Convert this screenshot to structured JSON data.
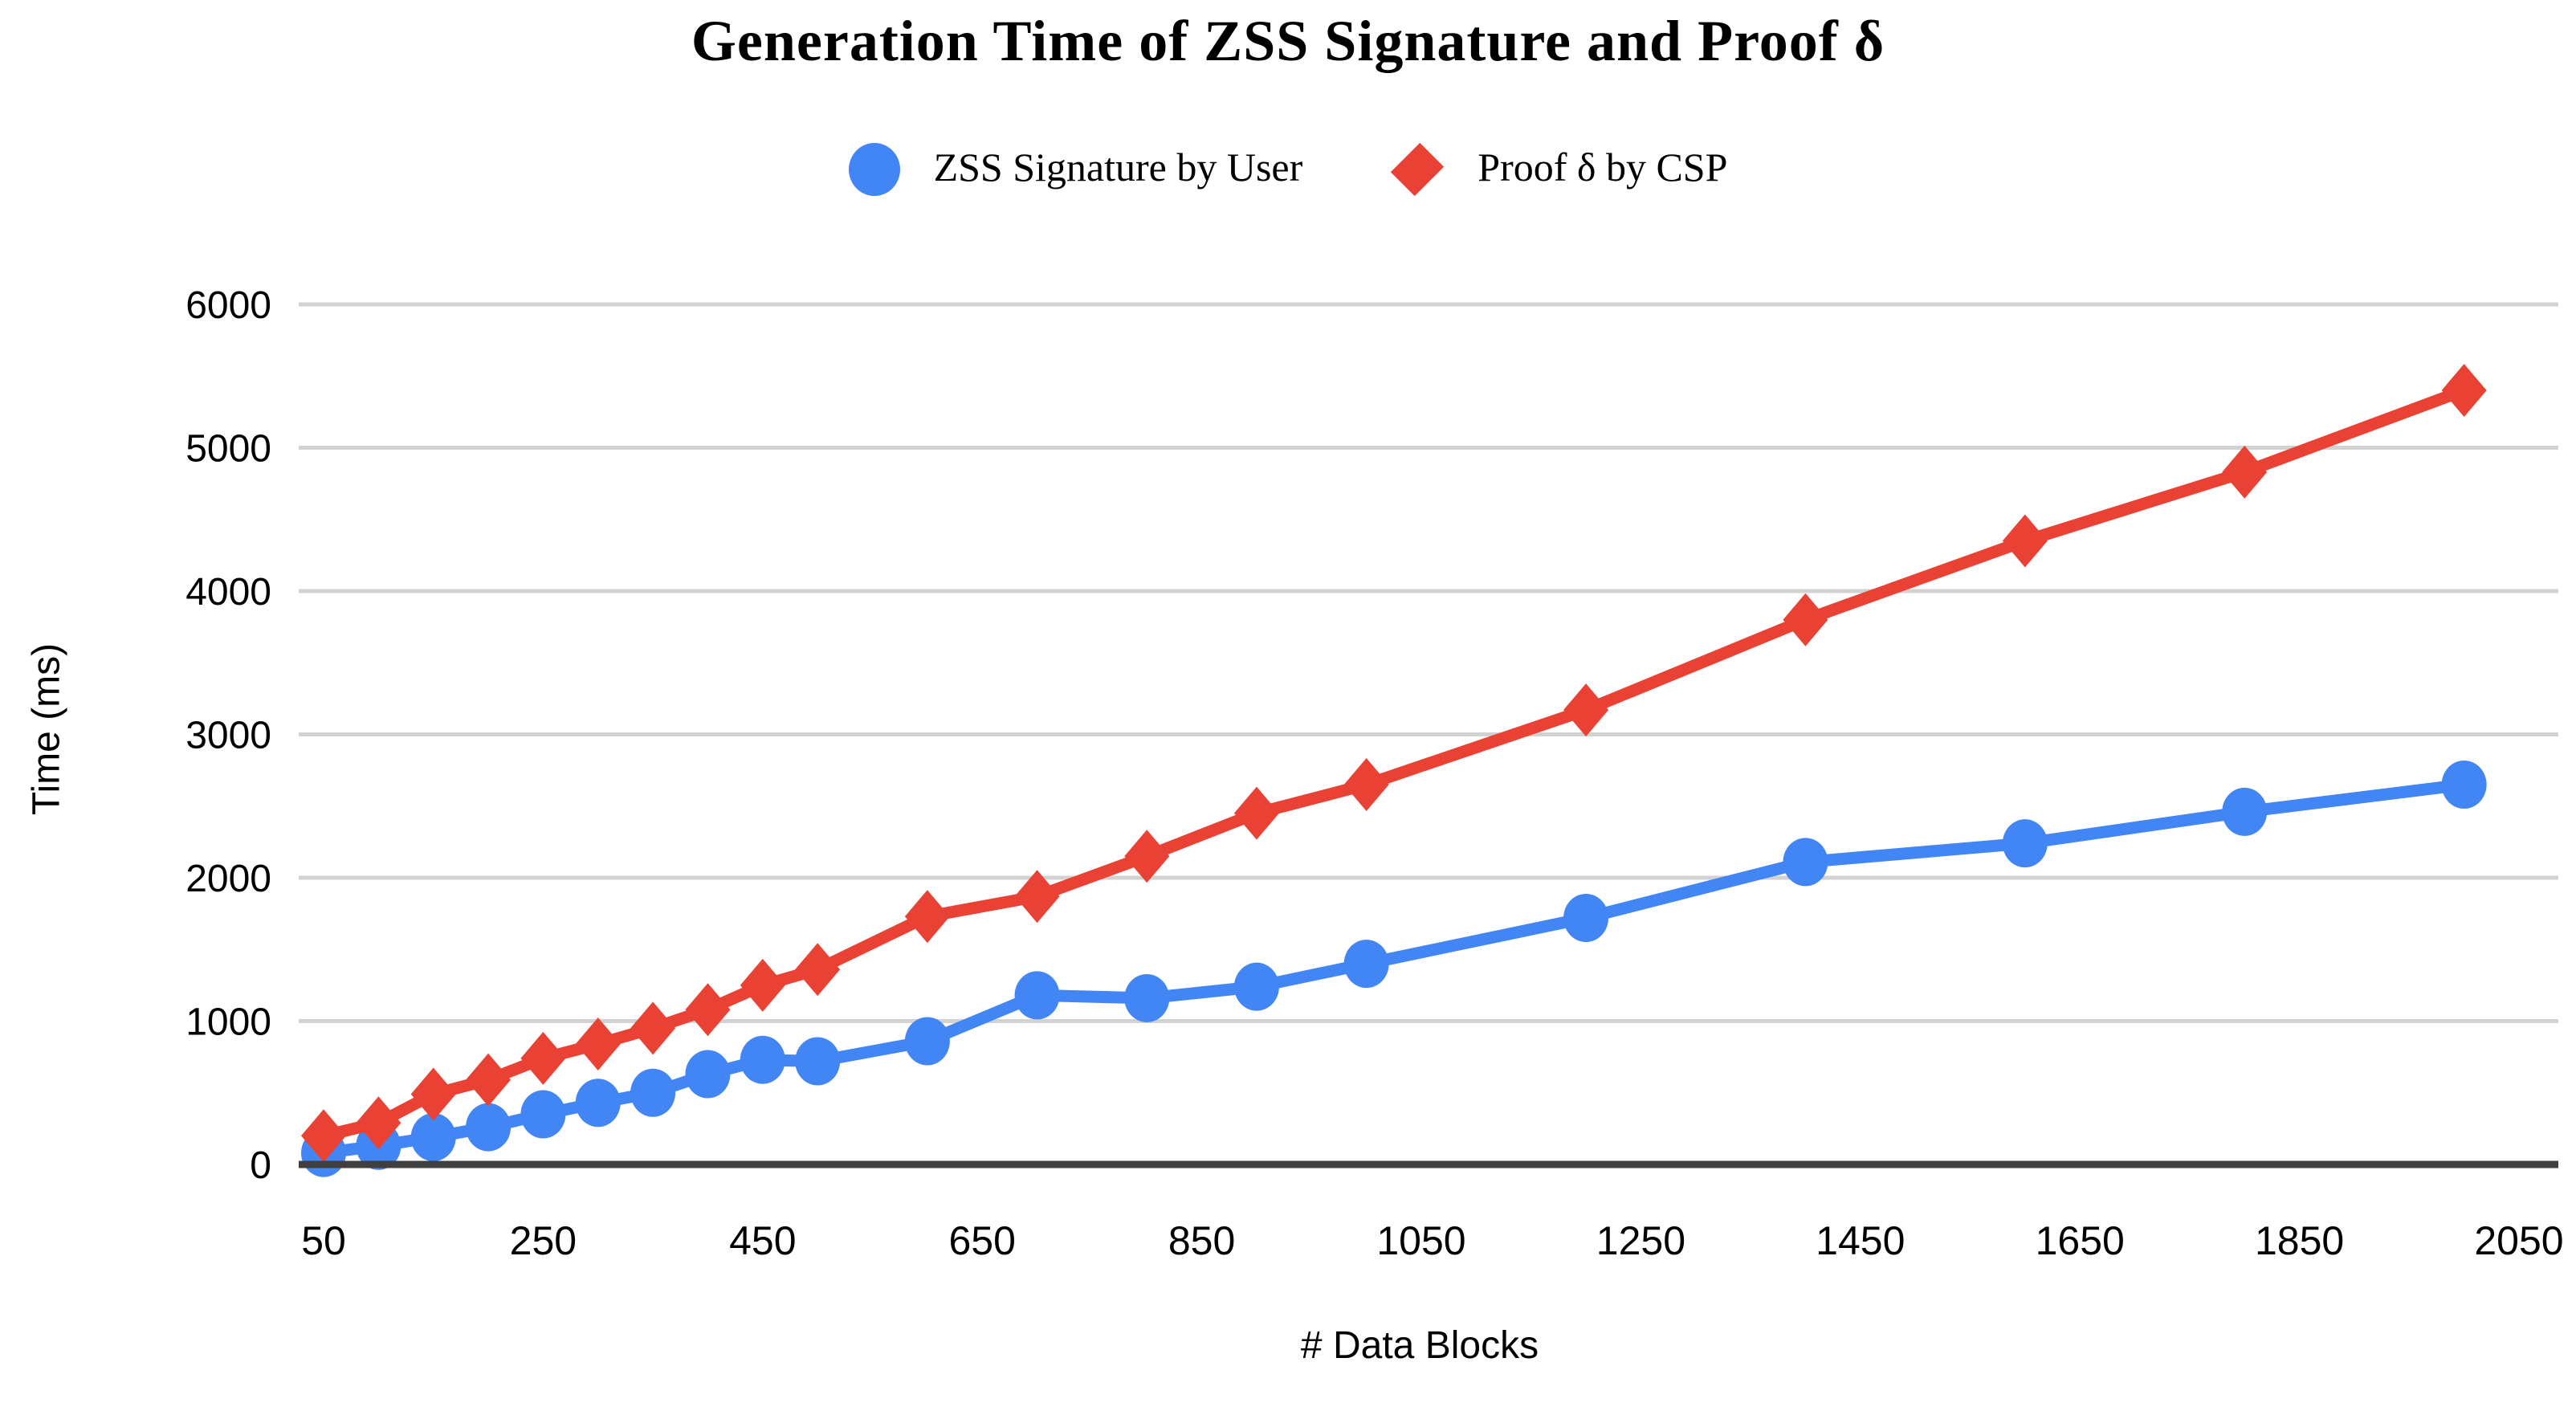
{
  "title": "Generation Time of ZSS Signature and Proof δ",
  "chart_data": {
    "type": "line",
    "title": "Generation Time of ZSS Signature and Proof δ",
    "xlabel": "# Data Blocks",
    "ylabel": "Time (ms)",
    "x": [
      50,
      100,
      150,
      200,
      250,
      300,
      350,
      400,
      450,
      500,
      600,
      700,
      800,
      900,
      1000,
      1200,
      1400,
      1600,
      1800,
      2000
    ],
    "series": [
      {
        "name": "ZSS Signature by User",
        "marker": "circle",
        "color": "#4285F4",
        "values": [
          80,
          130,
          190,
          260,
          350,
          430,
          500,
          630,
          730,
          720,
          860,
          1180,
          1160,
          1240,
          1400,
          1720,
          2110,
          2240,
          2460,
          2650
        ]
      },
      {
        "name": "Proof δ by CSP",
        "marker": "diamond",
        "color": "#E94235",
        "values": [
          200,
          290,
          490,
          590,
          740,
          840,
          950,
          1080,
          1250,
          1360,
          1730,
          1870,
          2150,
          2450,
          2650,
          3170,
          3800,
          4350,
          4830,
          5400
        ]
      }
    ],
    "x_ticks": [
      50,
      250,
      450,
      650,
      850,
      1050,
      1250,
      1450,
      1650,
      1850,
      2050
    ],
    "y_ticks": [
      0,
      1000,
      2000,
      3000,
      4000,
      5000,
      6000
    ],
    "xlim": [
      50,
      2050
    ],
    "ylim": [
      0,
      6000
    ],
    "grid": "horizontal",
    "legend_position": "top-center",
    "colors": {
      "gridline": "#D2D2D2",
      "axis_line": "#3F3F3F",
      "text": "#000000"
    }
  }
}
